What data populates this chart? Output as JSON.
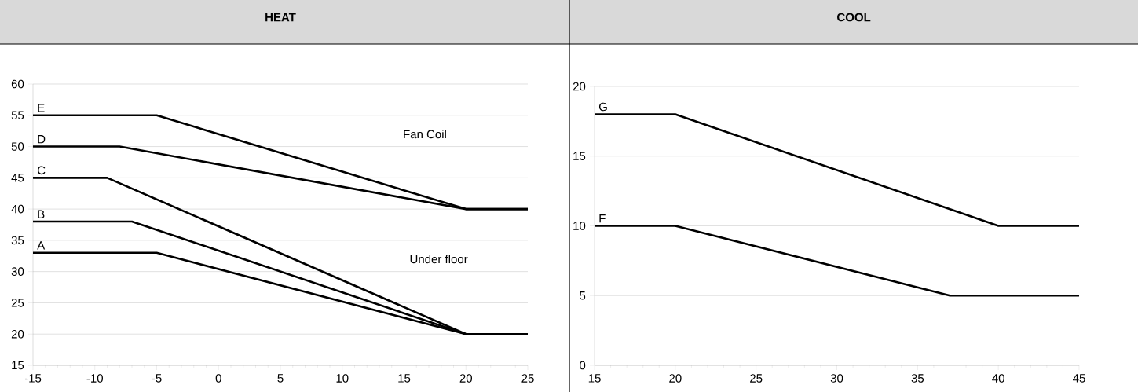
{
  "chart_data": [
    {
      "type": "line",
      "title": "HEAT",
      "xlim": [
        -15,
        25
      ],
      "xticks": [
        -15,
        -10,
        -5,
        0,
        5,
        10,
        15,
        20,
        25
      ],
      "ylim": [
        15,
        60
      ],
      "yticks": [
        15,
        20,
        25,
        30,
        35,
        40,
        45,
        50,
        55,
        60
      ],
      "grid": "y",
      "series": [
        {
          "name": "E",
          "color": "#000000",
          "x": [
            -15,
            -5,
            20,
            25
          ],
          "values": [
            55,
            55,
            40,
            40
          ]
        },
        {
          "name": "D",
          "color": "#000000",
          "x": [
            -15,
            -8,
            20,
            25
          ],
          "values": [
            50,
            50,
            40,
            40
          ]
        },
        {
          "name": "C",
          "color": "#000000",
          "x": [
            -15,
            -9,
            20,
            25
          ],
          "values": [
            45,
            45,
            20,
            20
          ]
        },
        {
          "name": "B",
          "color": "#000000",
          "x": [
            -15,
            -7,
            20,
            25
          ],
          "values": [
            38,
            38,
            20,
            20
          ]
        },
        {
          "name": "A",
          "color": "#000000",
          "x": [
            -15,
            -5,
            20,
            25
          ],
          "values": [
            33,
            33,
            20,
            20
          ]
        }
      ],
      "annotations": [
        "Fan Coil",
        "Under floor"
      ]
    },
    {
      "type": "line",
      "title": "COOL",
      "xlim": [
        15,
        45
      ],
      "xticks": [
        15,
        20,
        25,
        30,
        35,
        40,
        45
      ],
      "ylim": [
        0,
        20
      ],
      "yticks": [
        0,
        5,
        10,
        15,
        20
      ],
      "grid": "y",
      "series": [
        {
          "name": "G",
          "color": "#000000",
          "x": [
            15,
            20,
            40,
            45
          ],
          "values": [
            18,
            18,
            10,
            10
          ]
        },
        {
          "name": "F",
          "color": "#000000",
          "x": [
            15,
            20,
            37,
            45
          ],
          "values": [
            10,
            10,
            5,
            5
          ]
        }
      ]
    }
  ]
}
